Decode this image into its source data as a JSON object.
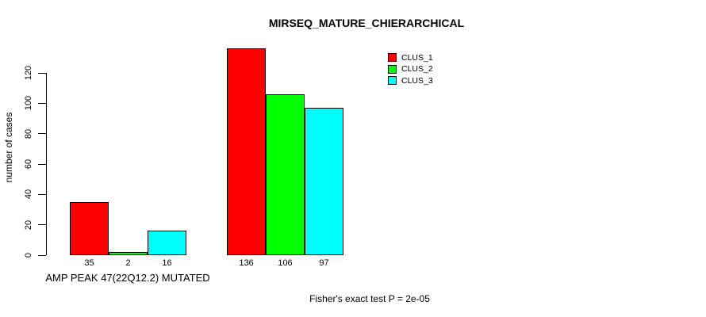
{
  "chart_data": {
    "type": "bar",
    "title": "MIRSEQ_MATURE_CHIERARCHICAL",
    "ylabel": "number of cases",
    "xlabel": "",
    "ylim": [
      0,
      120
    ],
    "yticks": [
      0,
      20,
      40,
      60,
      80,
      100,
      120
    ],
    "grid": false,
    "legend_position": "top-right",
    "categories": [
      "AMP PEAK 47(22Q12.2) MUTATED",
      ""
    ],
    "series": [
      {
        "name": "CLUS_1",
        "color": "#FF0000",
        "values": [
          35,
          136
        ]
      },
      {
        "name": "CLUS_2",
        "color": "#00FF00",
        "values": [
          2,
          106
        ]
      },
      {
        "name": "CLUS_3",
        "color": "#00FFFF",
        "values": [
          16,
          97
        ]
      }
    ],
    "bar_value_labels": [
      [
        "35",
        "2",
        "16"
      ],
      [
        "136",
        "106",
        "97"
      ]
    ],
    "annotation": "Fisher's exact test P = 2e-05"
  }
}
